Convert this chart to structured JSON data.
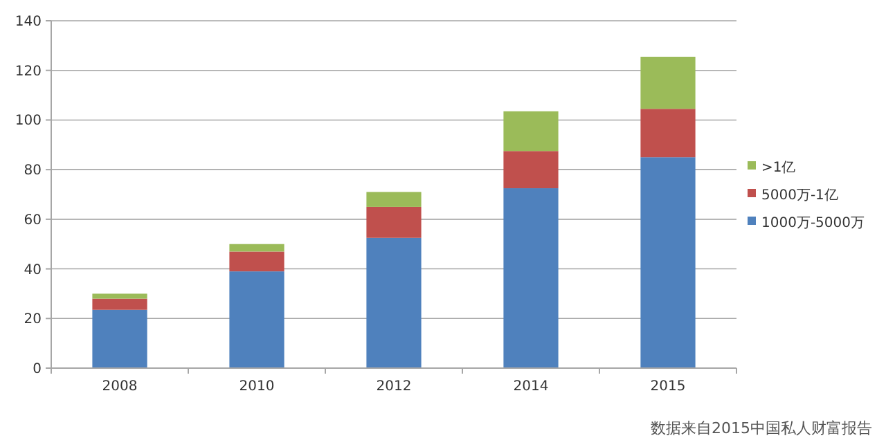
{
  "chart_data": {
    "type": "bar",
    "stacked": true,
    "categories": [
      "2008",
      "2010",
      "2012",
      "2014",
      "2015"
    ],
    "series": [
      {
        "name": "1000万-5000万",
        "color": "#4f81bd",
        "values": [
          23.5,
          39,
          52.5,
          72.5,
          85
        ]
      },
      {
        "name": "5000万-1亿",
        "color": "#c0504d",
        "values": [
          4.5,
          8,
          12.5,
          15,
          19.5
        ]
      },
      {
        "name": ">1亿",
        "color": "#9bbb59",
        "values": [
          2,
          3,
          6,
          16,
          21
        ]
      }
    ],
    "ylim": [
      0,
      140
    ],
    "yticks": [
      0,
      20,
      40,
      60,
      80,
      100,
      120,
      140
    ],
    "grid": "y",
    "legend": "right",
    "annotations": [
      "数据来自2015中国私人财富报告"
    ]
  }
}
